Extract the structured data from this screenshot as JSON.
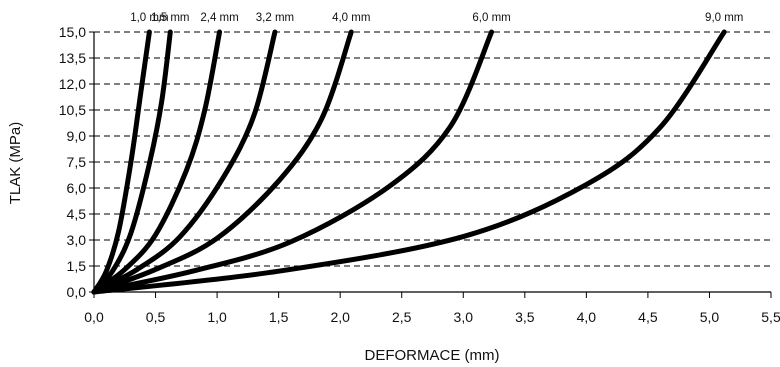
{
  "chart_data": {
    "type": "line",
    "xlabel": "DEFORMACE (mm)",
    "ylabel": "TLAK (MPa)",
    "xlim": [
      0,
      5.5
    ],
    "ylim": [
      0,
      15
    ],
    "x_ticks": [
      "0,0",
      "0,5",
      "1,0",
      "1,5",
      "2,0",
      "2,5",
      "3,0",
      "3,5",
      "4,0",
      "4,5",
      "5,0",
      "5,5"
    ],
    "y_ticks": [
      "0,0",
      "1,5",
      "3,0",
      "4,5",
      "6,0",
      "7,5",
      "9,0",
      "10,5",
      "12,0",
      "13,5",
      "15,0"
    ],
    "grid": "horizontal dashed",
    "line_color": "#000000",
    "series": [
      {
        "name": "1,0 mm",
        "x": [
          0,
          0.1,
          0.2,
          0.3,
          0.38,
          0.45
        ],
        "y": [
          0,
          1.2,
          3.5,
          7.5,
          11.5,
          15.0
        ]
      },
      {
        "name": "1,5 mm",
        "x": [
          0,
          0.15,
          0.3,
          0.45,
          0.55,
          0.62
        ],
        "y": [
          0,
          1.2,
          3.4,
          7.4,
          11.0,
          15.0
        ]
      },
      {
        "name": "2,4 mm",
        "x": [
          0,
          0.25,
          0.5,
          0.75,
          0.9,
          1.02
        ],
        "y": [
          0,
          1.3,
          3.3,
          7.0,
          10.5,
          15.0
        ]
      },
      {
        "name": "3,2 mm",
        "x": [
          0,
          0.35,
          0.7,
          1.05,
          1.3,
          1.47
        ],
        "y": [
          0,
          1.3,
          3.2,
          6.6,
          10.2,
          15.0
        ]
      },
      {
        "name": "4,0 mm",
        "x": [
          0,
          0.5,
          1.0,
          1.5,
          1.85,
          2.09
        ],
        "y": [
          0,
          1.3,
          3.1,
          6.4,
          10.0,
          15.0
        ]
      },
      {
        "name": "6,0 mm",
        "x": [
          0,
          0.8,
          1.6,
          2.4,
          2.9,
          3.23
        ],
        "y": [
          0,
          1.2,
          2.9,
          6.1,
          9.6,
          15.0
        ]
      },
      {
        "name": "9,0 mm",
        "x": [
          0,
          1.5,
          3.0,
          4.0,
          4.6,
          5.12
        ],
        "y": [
          0,
          1.2,
          3.2,
          6.2,
          9.5,
          15.0
        ]
      }
    ]
  }
}
